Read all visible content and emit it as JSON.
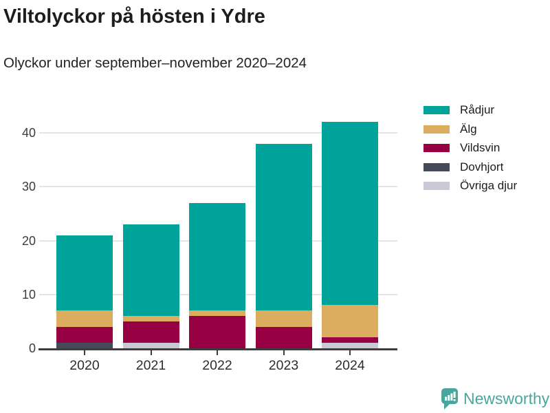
{
  "header": {
    "title": "Viltolyckor på hösten i Ydre",
    "subtitle": "Olyckor under september–november 2020–2024"
  },
  "chart_data": {
    "type": "bar",
    "stacked": true,
    "title": "Viltolyckor på hösten i Ydre",
    "subtitle": "Olyckor under september–november 2020–2024",
    "categories": [
      "2020",
      "2021",
      "2022",
      "2023",
      "2024"
    ],
    "series": [
      {
        "name": "Rådjur",
        "color": "#00a39a",
        "values": [
          14,
          17,
          20,
          31,
          34
        ]
      },
      {
        "name": "Älg",
        "color": "#dcad5e",
        "values": [
          3,
          1,
          1,
          3,
          6
        ]
      },
      {
        "name": "Vildsvin",
        "color": "#970042",
        "values": [
          3,
          4,
          6,
          4,
          1
        ]
      },
      {
        "name": "Dovhjort",
        "color": "#454a59",
        "values": [
          1,
          0,
          0,
          0,
          0
        ]
      },
      {
        "name": "Övriga djur",
        "color": "#c8c9d4",
        "values": [
          0,
          1,
          0,
          0,
          1
        ]
      }
    ],
    "totals": [
      21,
      23,
      27,
      38,
      42
    ],
    "stack_order_bottom_to_top": [
      "Övriga djur",
      "Dovhjort",
      "Vildsvin",
      "Älg",
      "Rådjur"
    ],
    "xlabel": "",
    "ylabel": "",
    "ylim": [
      0,
      44
    ],
    "yticks": [
      0,
      10,
      20,
      30,
      40
    ],
    "grid": "horizontal",
    "legend_position": "top-right"
  },
  "colors": {
    "background": "#ffffff",
    "axis_line": "#3d3d3d",
    "gridline": "#e4e4e4",
    "title_text": "#1d1d1b",
    "axis_text": "#3c3c3c",
    "brand_teal": "#4aa69c"
  },
  "footer": {
    "brand": "Newsworthy",
    "logo_icon": "bar-chart-speech-bubble-icon"
  }
}
